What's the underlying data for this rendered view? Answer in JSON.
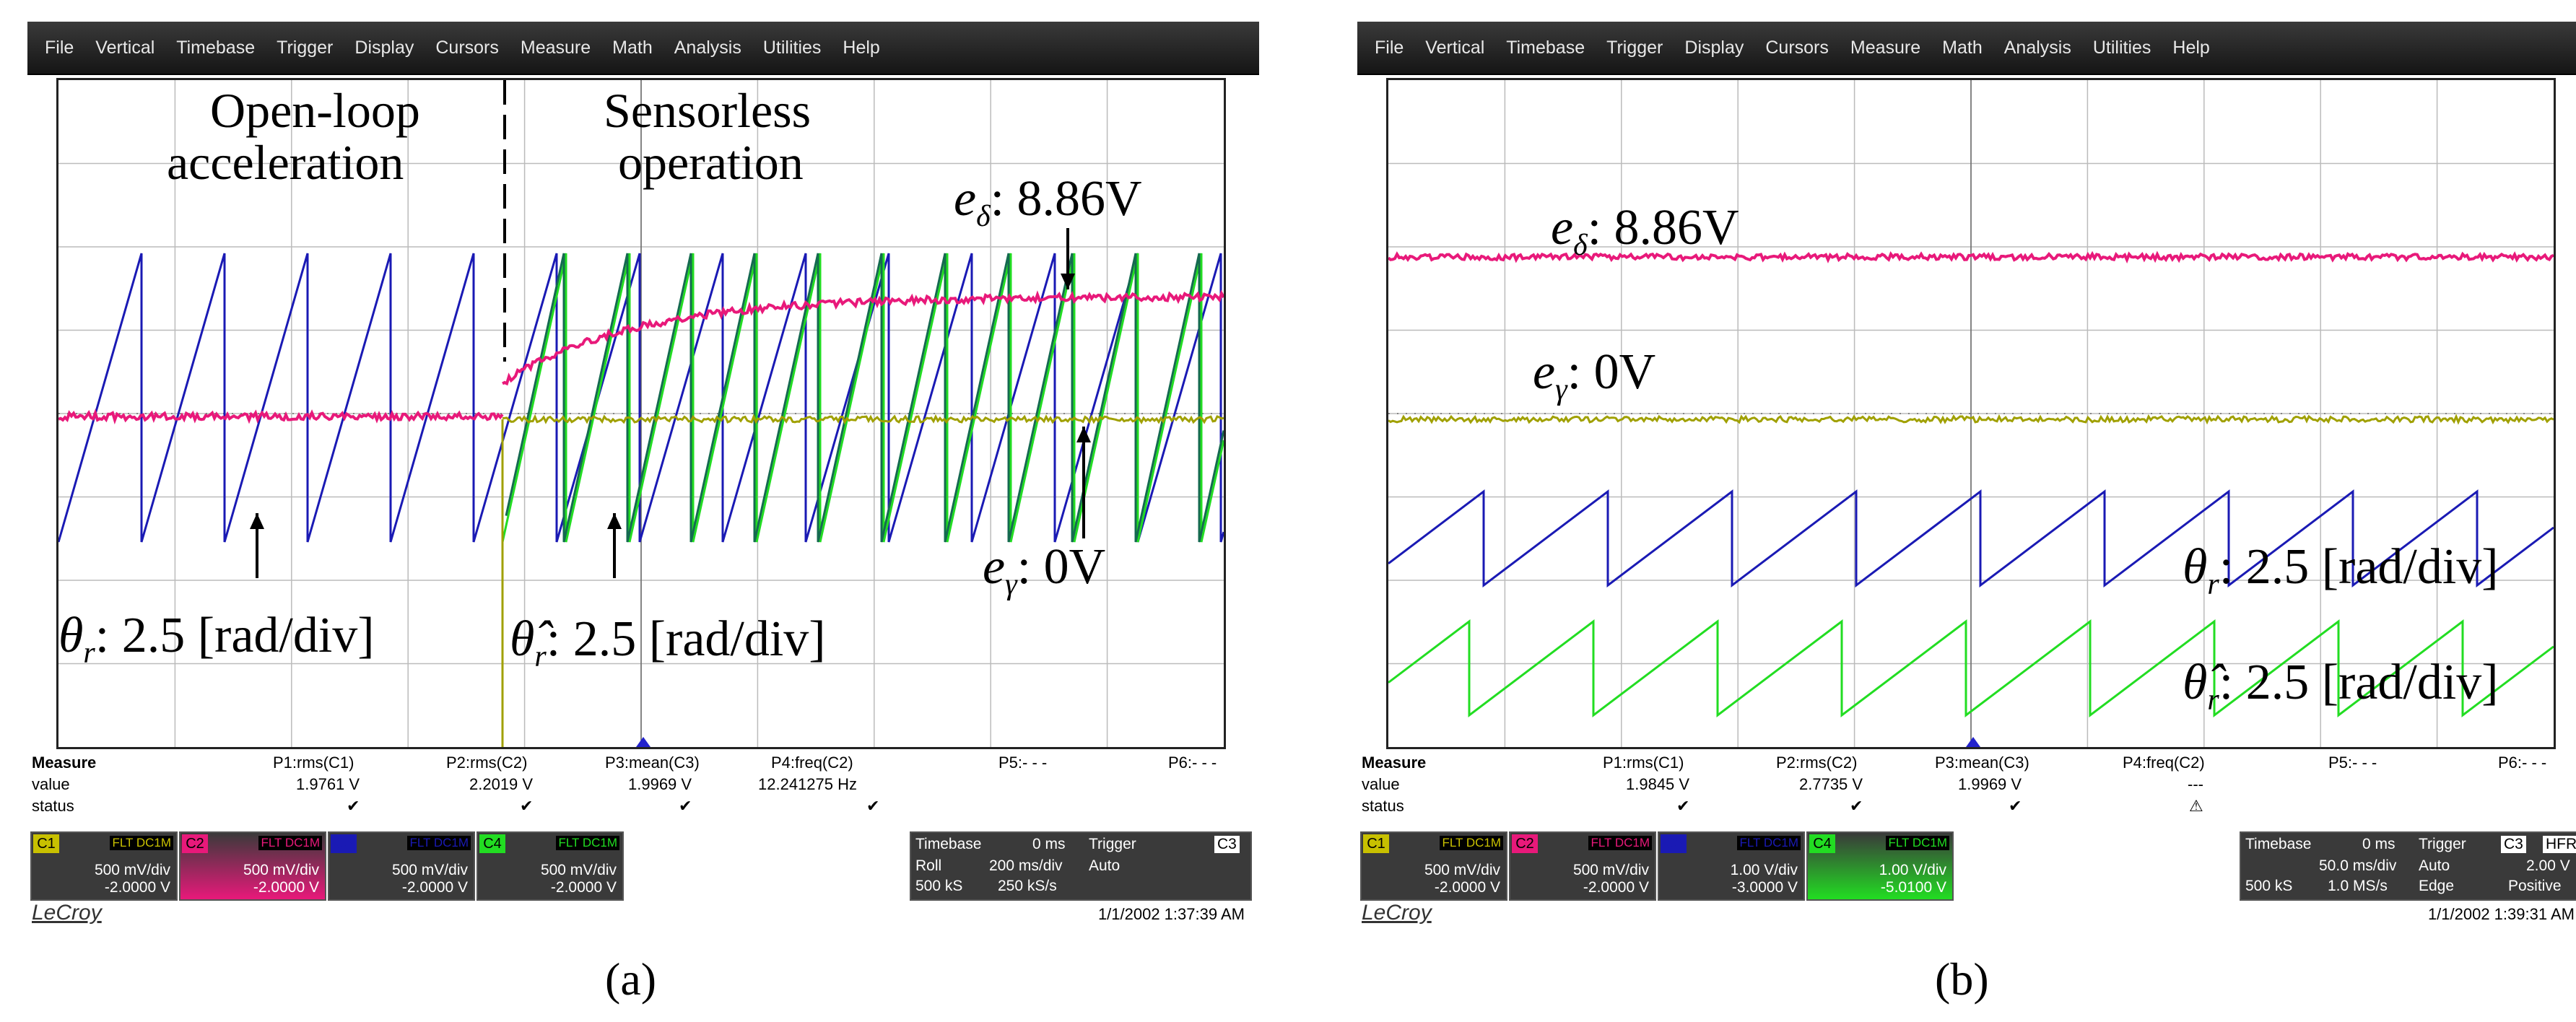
{
  "menu": [
    "File",
    "Vertical",
    "Timebase",
    "Trigger",
    "Display",
    "Cursors",
    "Measure",
    "Math",
    "Analysis",
    "Utilities",
    "Help"
  ],
  "colors": {
    "c1": "#c8c000",
    "c2": "#e8197a",
    "c3": "#1a1ab4",
    "c4": "#22dd22",
    "dark_green": "#156a50",
    "olive": "#a0a000"
  },
  "a": {
    "caption": "(a)",
    "phase1": "Open-loop",
    "phase1b": "acceleration",
    "phase2": "Sensorless",
    "phase2b": "operation",
    "e_delta": {
      "sym": "e",
      "sub": "δ",
      "text": ": 8.86V"
    },
    "e_gamma": {
      "sym": "e",
      "sub": "γ",
      "text": ": 0V"
    },
    "theta": {
      "sym": "θ",
      "sub": "r",
      "text": ": 2.5 [rad/div]"
    },
    "theta_hat": {
      "sym": "θ̂",
      "sub": "r",
      "text": ": 2.5 [rad/div]"
    },
    "measure": {
      "title": "Measure",
      "row_value": "value",
      "row_status": "status",
      "headers": [
        "P1:rms(C1)",
        "P2:rms(C2)",
        "P3:mean(C3)",
        "P4:freq(C2)",
        "P5:- - -",
        "P6:- - -"
      ],
      "values": [
        "1.9761 V",
        "2.2019 V",
        "1.9969 V",
        "12.241275 Hz",
        "",
        ""
      ],
      "status": [
        "✔",
        "✔",
        "✔",
        "✔",
        "",
        ""
      ]
    },
    "channels": [
      {
        "id": "C1",
        "scale": "500 mV/div",
        "offset": "-2.0000 V"
      },
      {
        "id": "C2",
        "scale": "500 mV/div",
        "offset": "-2.0000 V"
      },
      {
        "id": "C3",
        "scale": "500 mV/div",
        "offset": "-2.0000 V"
      },
      {
        "id": "C4",
        "scale": "500 mV/div",
        "offset": "-2.0000 V"
      }
    ],
    "timebase": {
      "label": "Timebase",
      "delay": "0 ms",
      "mode": "Roll",
      "div": "200 ms/div",
      "samples": "500 kS",
      "rate": "250 kS/s"
    },
    "trigger": {
      "label": "Trigger",
      "src": "C3",
      "mode": "Auto"
    },
    "brand": "LeCroy",
    "timestamp": "1/1/2002 1:37:39 AM"
  },
  "b": {
    "caption": "(b)",
    "e_delta": {
      "sym": "e",
      "sub": "δ",
      "text": ": 8.86V"
    },
    "e_gamma": {
      "sym": "e",
      "sub": "γ",
      "text": ": 0V"
    },
    "theta": {
      "sym": "θ",
      "sub": "r",
      "text": ": 2.5 [rad/div]"
    },
    "theta_hat": {
      "sym": "θ̂",
      "sub": "r",
      "text": ": 2.5 [rad/div]"
    },
    "measure": {
      "title": "Measure",
      "row_value": "value",
      "row_status": "status",
      "headers": [
        "P1:rms(C1)",
        "P2:rms(C2)",
        "P3:mean(C3)",
        "P4:freq(C2)",
        "P5:- - -",
        "P6:- - -"
      ],
      "values": [
        "1.9845 V",
        "2.7735 V",
        "1.9969 V",
        "---",
        "",
        ""
      ],
      "status": [
        "✔",
        "✔",
        "✔",
        "⚠",
        "",
        ""
      ]
    },
    "channels": [
      {
        "id": "C1",
        "scale": "500 mV/div",
        "offset": "-2.0000 V"
      },
      {
        "id": "C2",
        "scale": "500 mV/div",
        "offset": "-2.0000 V"
      },
      {
        "id": "C3",
        "scale": "1.00 V/div",
        "offset": "-3.0000 V"
      },
      {
        "id": "C4",
        "scale": "1.00 V/div",
        "offset": "-5.0100 V"
      }
    ],
    "timebase": {
      "label": "Timebase",
      "delay": "0 ms",
      "mode": "",
      "div": "50.0 ms/div",
      "samples": "500 kS",
      "rate": "1.0 MS/s"
    },
    "trigger": {
      "label": "Trigger",
      "src": "C3",
      "coupling": "HFR",
      "mode": "Auto",
      "level": "2.00 V",
      "type": "Edge",
      "slope": "Positive"
    },
    "brand": "LeCroy",
    "timestamp": "1/1/2002 1:39:31 AM"
  }
}
